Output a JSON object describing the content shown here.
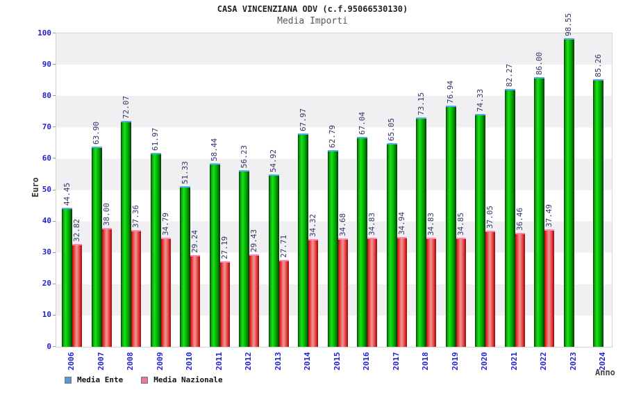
{
  "chart_data": {
    "type": "bar",
    "title": "CASA VINCENZIANA ODV (c.f.95066530130)",
    "subtitle": "Media Importi",
    "xlabel": "Anno",
    "ylabel": "Euro",
    "ylim": [
      0,
      100
    ],
    "y_ticks": [
      0,
      10,
      20,
      30,
      40,
      50,
      60,
      70,
      80,
      90,
      100
    ],
    "grid": "horizontal-bands",
    "legend_position": "bottom-left",
    "value_label_decimals": 2,
    "categories": [
      "2006",
      "2007",
      "2008",
      "2009",
      "2010",
      "2011",
      "2012",
      "2013",
      "2014",
      "2015",
      "2016",
      "2017",
      "2018",
      "2019",
      "2020",
      "2021",
      "2022",
      "2023",
      "2024"
    ],
    "series": [
      {
        "name": "Media Ente",
        "legend_color": "#5b99d6",
        "bar_style": "green-gradient",
        "values": [
          44.45,
          63.9,
          72.07,
          61.97,
          51.33,
          58.44,
          56.23,
          54.92,
          67.97,
          62.79,
          67.04,
          65.05,
          73.15,
          76.94,
          74.33,
          82.27,
          86.0,
          98.55,
          85.26
        ]
      },
      {
        "name": "Media Nazionale",
        "legend_color": "#ee7799",
        "bar_style": "red-gradient",
        "values": [
          32.82,
          38.0,
          37.36,
          34.79,
          29.24,
          27.19,
          29.43,
          27.71,
          34.32,
          34.68,
          34.83,
          34.94,
          34.83,
          34.85,
          37.05,
          36.46,
          37.49,
          null,
          null
        ]
      }
    ],
    "colors": {
      "tick_label": "#2222cc",
      "value_label": "#333366",
      "band_gray": "#f0f0f2",
      "band_white": "#ffffff",
      "ente_cap": "#55aaee",
      "nazionale_cap": "#ff88bb"
    }
  }
}
